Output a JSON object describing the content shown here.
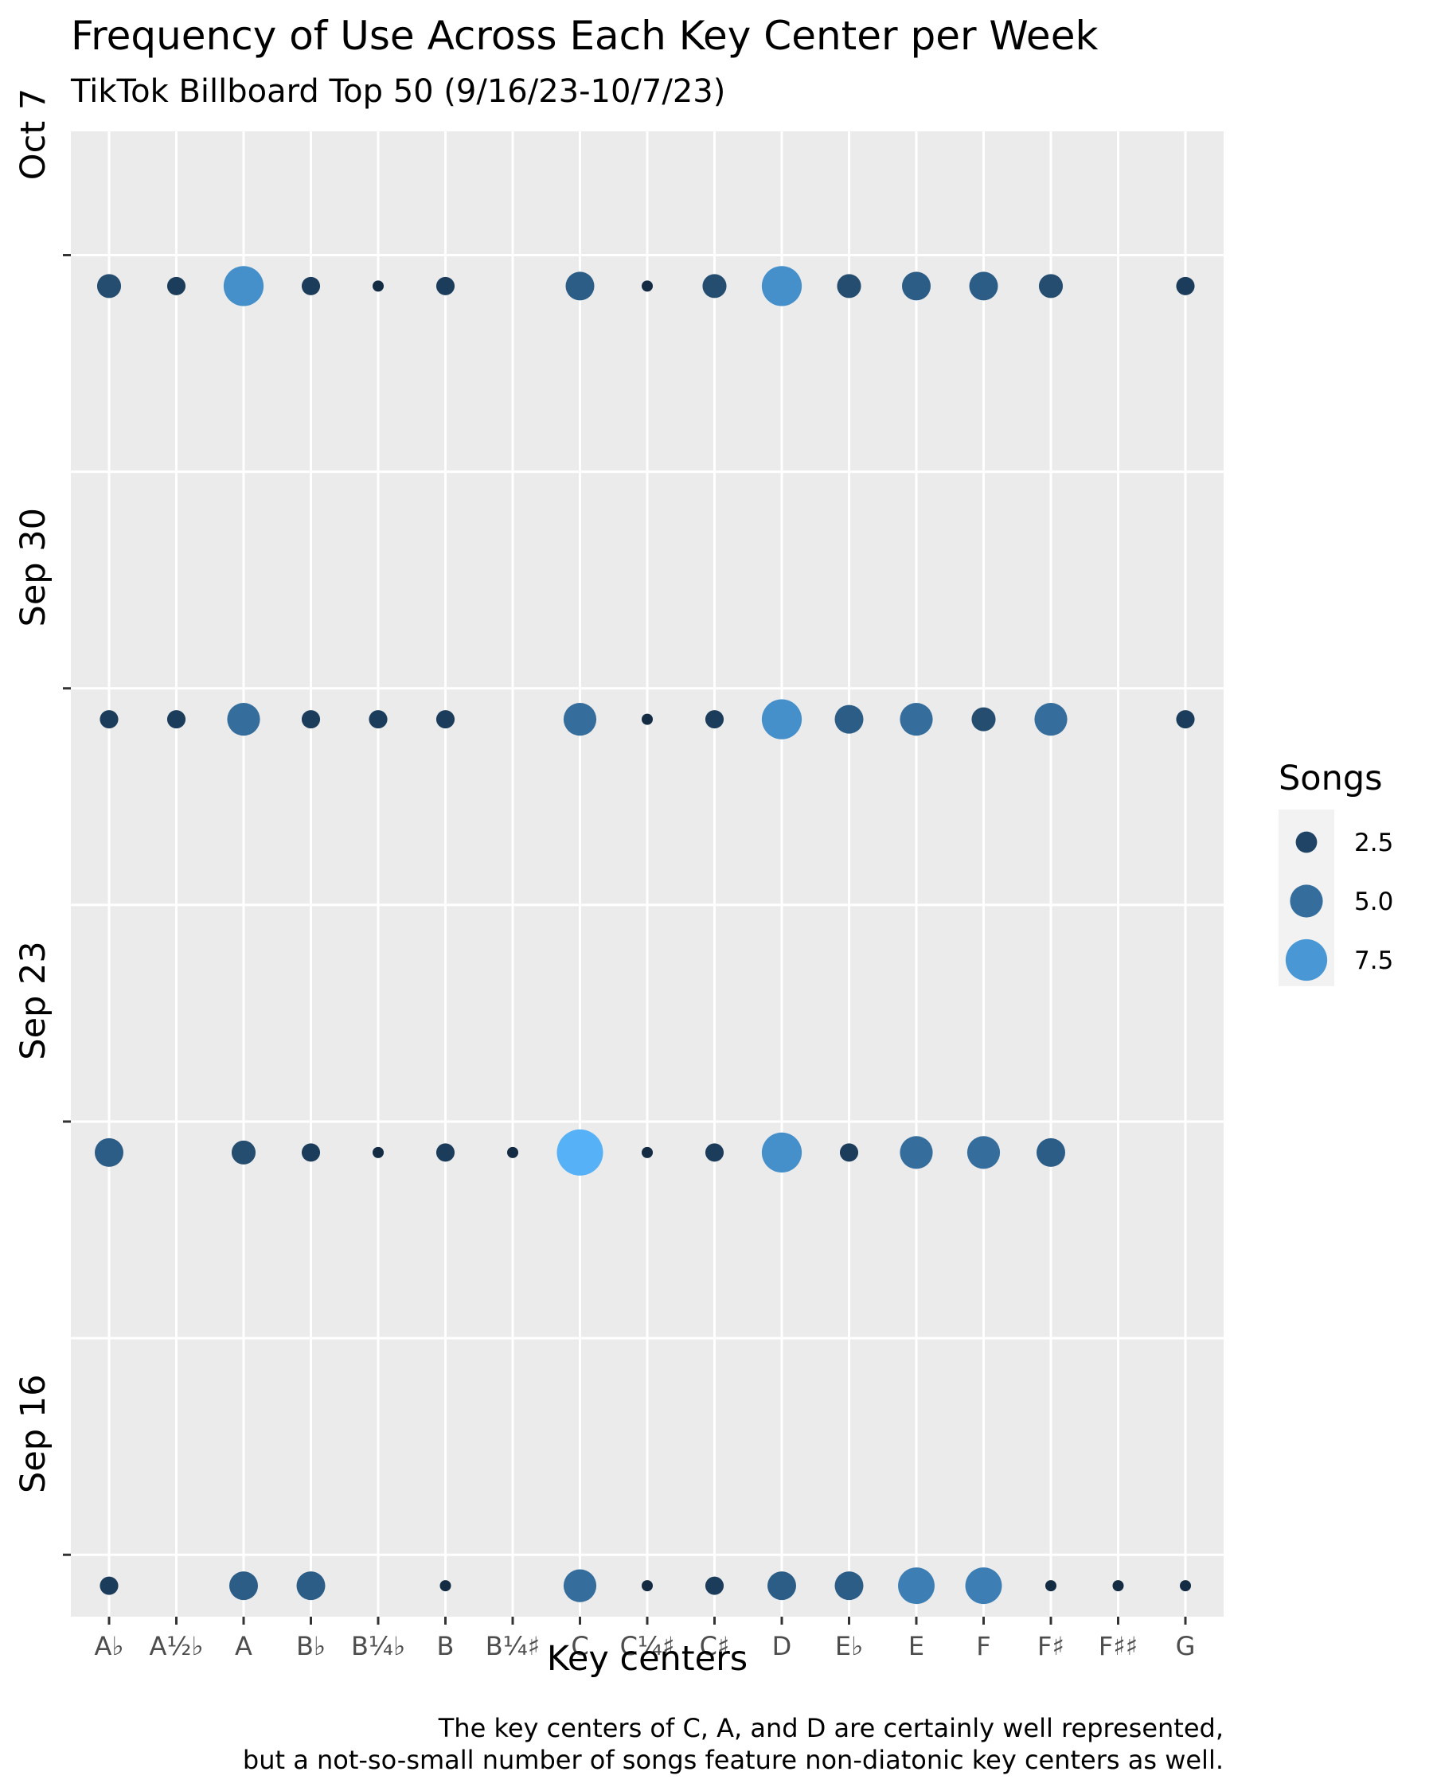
{
  "chart_data": {
    "type": "scatter",
    "title": "Frequency of Use Across Each Key Center per Week",
    "subtitle": "TikTok Billboard Top 50 (9/16/23-10/7/23)",
    "caption": [
      "The key centers of C, A, and D are certainly well represented,",
      "but a not-so-small number of songs feature non-diatonic key centers as well."
    ],
    "xlabel": "Key centers",
    "ylabel": "",
    "x_categories": [
      "A♭",
      "A½♭",
      "A",
      "B♭",
      "B¼♭",
      "B",
      "B¼♯",
      "C",
      "C¼♯",
      "C♯",
      "D",
      "E♭",
      "E",
      "F",
      "F♯",
      "F♯♯",
      "G"
    ],
    "y_ticks": [
      "Sep 16",
      "Sep 23",
      "Sep 30",
      "Oct 7"
    ],
    "y_range_days": [
      -1,
      23
    ],
    "grid": true,
    "legend": {
      "title": "Songs",
      "placement": "right",
      "entries": [
        {
          "label": "2.5",
          "value": 2.5
        },
        {
          "label": "5.0",
          "value": 5.0
        },
        {
          "label": "7.5",
          "value": 7.5
        }
      ]
    },
    "size_domain": [
      1,
      9
    ],
    "colors": {
      "low": "#132B43",
      "high": "#56B1F7",
      "panel": "#EBEBEB",
      "grid": "#FFFFFF"
    },
    "series": [
      {
        "week": "Sep 16",
        "values": [
          2,
          0,
          4,
          4,
          0,
          1,
          0,
          5,
          1,
          2,
          4,
          4,
          6,
          6,
          1,
          1,
          1
        ]
      },
      {
        "week": "Sep 23",
        "values": [
          4,
          0,
          3,
          2,
          1,
          2,
          1,
          9,
          1,
          2,
          7,
          2,
          5,
          5,
          4,
          0,
          0
        ]
      },
      {
        "week": "Sep 30",
        "values": [
          2,
          2,
          5,
          2,
          2,
          2,
          0,
          5,
          1,
          2,
          7,
          4,
          5,
          3,
          5,
          0,
          2
        ]
      },
      {
        "week": "Oct 7",
        "values": [
          3,
          2,
          7,
          2,
          1,
          2,
          0,
          4,
          1,
          3,
          7,
          3,
          4,
          4,
          3,
          0,
          2
        ]
      }
    ]
  }
}
